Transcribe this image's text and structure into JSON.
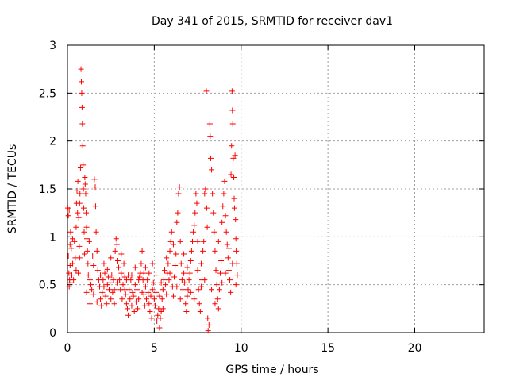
{
  "chart_data": {
    "type": "scatter",
    "title": "Day 341 of 2015, SRMTID for receiver dav1",
    "xlabel": "GPS time / hours",
    "ylabel": "SRMTID / TECUs",
    "xlim": [
      0,
      24
    ],
    "ylim": [
      0,
      3
    ],
    "xticks": [
      "0",
      "5",
      "10",
      "15",
      "20"
    ],
    "yticks": [
      "0",
      "0.5",
      "1",
      "1.5",
      "2",
      "2.5",
      "3"
    ],
    "grid": true,
    "marker": "+",
    "color": "#ff0000",
    "series": [
      {
        "points": [
          [
            0.02,
            1.3
          ],
          [
            0.05,
            1.22
          ],
          [
            0.05,
            0.8
          ],
          [
            0.08,
            0.62
          ],
          [
            0.1,
            1.28
          ],
          [
            0.12,
            0.55
          ],
          [
            0.15,
            0.92
          ],
          [
            0.15,
            0.7
          ],
          [
            0.18,
            1.05
          ],
          [
            0.2,
            0.52
          ],
          [
            0.22,
            0.88
          ],
          [
            0.25,
            0.6
          ],
          [
            0.3,
            0.72
          ],
          [
            0.35,
            0.55
          ],
          [
            0.4,
            0.95
          ],
          [
            0.45,
            0.78
          ],
          [
            0.5,
            1.1
          ],
          [
            0.52,
            1.35
          ],
          [
            0.55,
            1.48
          ],
          [
            0.58,
            1.25
          ],
          [
            0.6,
            1.58
          ],
          [
            0.62,
            0.62
          ],
          [
            0.65,
            1.2
          ],
          [
            0.68,
            0.9
          ],
          [
            0.7,
            1.35
          ],
          [
            0.72,
            1.45
          ],
          [
            0.75,
            1.72
          ],
          [
            0.78,
            2.75
          ],
          [
            0.8,
            2.62
          ],
          [
            0.82,
            2.5
          ],
          [
            0.84,
            2.35
          ],
          [
            0.86,
            2.18
          ],
          [
            0.88,
            1.95
          ],
          [
            0.9,
            1.75
          ],
          [
            0.92,
            1.5
          ],
          [
            0.94,
            1.3
          ],
          [
            0.96,
            1.05
          ],
          [
            0.98,
            0.82
          ],
          [
            1.0,
            1.62
          ],
          [
            1.02,
            1.55
          ],
          [
            1.05,
            1.45
          ],
          [
            1.08,
            1.25
          ],
          [
            1.1,
            1.1
          ],
          [
            1.12,
            0.98
          ],
          [
            1.15,
            0.85
          ],
          [
            1.18,
            0.72
          ],
          [
            1.2,
            0.6
          ],
          [
            1.25,
            0.95
          ],
          [
            1.3,
            0.55
          ],
          [
            1.35,
            0.5
          ],
          [
            1.4,
            0.45
          ],
          [
            1.45,
            0.8
          ],
          [
            1.5,
            0.7
          ],
          [
            1.55,
            1.6
          ],
          [
            1.6,
            1.52
          ],
          [
            1.62,
            1.32
          ],
          [
            1.65,
            1.05
          ],
          [
            1.7,
            0.85
          ],
          [
            1.75,
            0.65
          ],
          [
            1.8,
            0.55
          ],
          [
            1.85,
            0.48
          ],
          [
            1.9,
            0.35
          ],
          [
            1.95,
            0.28
          ],
          [
            2.0,
            0.42
          ],
          [
            2.05,
            0.55
          ],
          [
            2.1,
            0.48
          ],
          [
            2.15,
            0.62
          ],
          [
            2.2,
            0.38
          ],
          [
            2.25,
            0.3
          ],
          [
            2.3,
            0.5
          ],
          [
            2.35,
            0.58
          ],
          [
            2.4,
            0.45
          ],
          [
            2.45,
            0.52
          ],
          [
            2.5,
            0.35
          ],
          [
            2.55,
            0.6
          ],
          [
            2.6,
            0.42
          ],
          [
            2.65,
            0.55
          ],
          [
            2.7,
            0.3
          ],
          [
            2.75,
            0.85
          ],
          [
            2.8,
            0.98
          ],
          [
            2.85,
            0.92
          ],
          [
            2.9,
            0.75
          ],
          [
            2.95,
            0.68
          ],
          [
            3.0,
            0.55
          ],
          [
            3.05,
            0.45
          ],
          [
            3.1,
            0.62
          ],
          [
            3.15,
            0.35
          ],
          [
            3.2,
            0.5
          ],
          [
            3.25,
            0.72
          ],
          [
            3.3,
            0.58
          ],
          [
            3.35,
            0.4
          ],
          [
            3.4,
            0.3
          ],
          [
            3.45,
            0.25
          ],
          [
            3.5,
            0.18
          ],
          [
            3.55,
            0.45
          ],
          [
            3.6,
            0.35
          ],
          [
            3.65,
            0.55
          ],
          [
            3.7,
            0.28
          ],
          [
            3.75,
            0.42
          ],
          [
            3.8,
            0.38
          ],
          [
            3.85,
            0.22
          ],
          [
            3.9,
            0.5
          ],
          [
            3.95,
            0.32
          ],
          [
            4.0,
            0.45
          ],
          [
            4.05,
            0.25
          ],
          [
            4.1,
            0.35
          ],
          [
            4.15,
            0.58
          ],
          [
            4.2,
            0.62
          ],
          [
            4.25,
            0.72
          ],
          [
            4.3,
            0.85
          ],
          [
            4.35,
            0.55
          ],
          [
            4.4,
            0.4
          ],
          [
            4.45,
            0.28
          ],
          [
            4.5,
            0.48
          ],
          [
            4.55,
            0.35
          ],
          [
            4.6,
            0.55
          ],
          [
            4.65,
            0.42
          ],
          [
            4.7,
            0.3
          ],
          [
            4.75,
            0.22
          ],
          [
            4.8,
            0.38
          ],
          [
            4.85,
            0.15
          ],
          [
            4.9,
            0.45
          ],
          [
            4.95,
            0.52
          ],
          [
            5.0,
            0.35
          ],
          [
            5.05,
            0.28
          ],
          [
            5.1,
            0.42
          ],
          [
            5.15,
            0.12
          ],
          [
            5.2,
            0.18
          ],
          [
            5.25,
            0.25
          ],
          [
            5.3,
            0.05
          ],
          [
            5.35,
            0.15
          ],
          [
            5.4,
            0.22
          ],
          [
            5.45,
            0.35
          ],
          [
            5.5,
            0.45
          ],
          [
            5.55,
            0.55
          ],
          [
            5.6,
            0.65
          ],
          [
            5.65,
            0.5
          ],
          [
            5.7,
            0.4
          ],
          [
            5.75,
            0.62
          ],
          [
            5.8,
            0.72
          ],
          [
            5.85,
            0.55
          ],
          [
            5.9,
            0.85
          ],
          [
            5.95,
            0.95
          ],
          [
            6.0,
            1.05
          ],
          [
            6.05,
            0.48
          ],
          [
            6.1,
            0.38
          ],
          [
            6.15,
            0.58
          ],
          [
            6.2,
            0.7
          ],
          [
            6.25,
            0.82
          ],
          [
            6.3,
            1.15
          ],
          [
            6.35,
            1.25
          ],
          [
            6.4,
            1.45
          ],
          [
            6.45,
            1.52
          ],
          [
            6.5,
            0.95
          ],
          [
            6.55,
            0.72
          ],
          [
            6.6,
            0.55
          ],
          [
            6.65,
            0.45
          ],
          [
            6.7,
            0.62
          ],
          [
            6.75,
            0.52
          ],
          [
            6.8,
            0.3
          ],
          [
            6.85,
            0.22
          ],
          [
            6.9,
            0.38
          ],
          [
            6.95,
            0.45
          ],
          [
            7.0,
            0.55
          ],
          [
            7.05,
            0.62
          ],
          [
            7.1,
            0.75
          ],
          [
            7.15,
            0.85
          ],
          [
            7.2,
            0.95
          ],
          [
            7.25,
            1.05
          ],
          [
            7.3,
            1.12
          ],
          [
            7.35,
            1.25
          ],
          [
            7.4,
            1.45
          ],
          [
            7.45,
            1.35
          ],
          [
            7.5,
            0.65
          ],
          [
            7.55,
            0.45
          ],
          [
            7.6,
            0.3
          ],
          [
            7.65,
            0.22
          ],
          [
            7.7,
            0.48
          ],
          [
            7.75,
            0.55
          ],
          [
            7.8,
            0.85
          ],
          [
            7.85,
            0.95
          ],
          [
            7.9,
            1.45
          ],
          [
            7.95,
            1.5
          ],
          [
            8.0,
            2.52
          ],
          [
            8.02,
            1.3
          ],
          [
            8.05,
            1.1
          ],
          [
            8.08,
            0.15
          ],
          [
            8.1,
            0.02
          ],
          [
            8.15,
            0.08
          ],
          [
            8.2,
            2.18
          ],
          [
            8.22,
            2.05
          ],
          [
            8.25,
            1.82
          ],
          [
            8.3,
            1.7
          ],
          [
            8.35,
            1.45
          ],
          [
            8.4,
            1.25
          ],
          [
            8.45,
            1.05
          ],
          [
            8.5,
            0.85
          ],
          [
            8.55,
            0.65
          ],
          [
            8.6,
            0.5
          ],
          [
            8.65,
            0.35
          ],
          [
            8.7,
            0.25
          ],
          [
            8.75,
            0.45
          ],
          [
            8.8,
            0.62
          ],
          [
            8.85,
            0.75
          ],
          [
            8.9,
            1.15
          ],
          [
            8.95,
            1.32
          ],
          [
            9.0,
            1.45
          ],
          [
            9.05,
            1.58
          ],
          [
            9.1,
            1.22
          ],
          [
            9.15,
            1.05
          ],
          [
            9.2,
            0.92
          ],
          [
            9.25,
            0.78
          ],
          [
            9.3,
            0.65
          ],
          [
            9.35,
            0.55
          ],
          [
            9.4,
            0.42
          ],
          [
            9.42,
            1.65
          ],
          [
            9.45,
            1.95
          ],
          [
            9.48,
            2.52
          ],
          [
            9.5,
            2.32
          ],
          [
            9.52,
            2.18
          ],
          [
            9.55,
            1.82
          ],
          [
            9.58,
            1.62
          ],
          [
            9.6,
            1.4
          ],
          [
            9.62,
            1.3
          ],
          [
            9.65,
            1.85
          ],
          [
            9.68,
            1.18
          ],
          [
            9.7,
            0.98
          ],
          [
            9.72,
            0.85
          ],
          [
            9.75,
            0.72
          ],
          [
            9.78,
            0.6
          ],
          [
            0.1,
            0.48
          ],
          [
            0.3,
            0.98
          ],
          [
            0.5,
            0.65
          ],
          [
            0.7,
            0.78
          ],
          [
            1.1,
            0.42
          ],
          [
            1.3,
            0.3
          ],
          [
            1.5,
            0.4
          ],
          [
            1.7,
            0.32
          ],
          [
            1.9,
            0.6
          ],
          [
            2.1,
            0.72
          ],
          [
            2.3,
            0.66
          ],
          [
            2.5,
            0.78
          ],
          [
            2.7,
            0.45
          ],
          [
            2.9,
            0.52
          ],
          [
            3.1,
            0.82
          ],
          [
            3.3,
            0.45
          ],
          [
            3.5,
            0.6
          ],
          [
            3.7,
            0.6
          ],
          [
            3.9,
            0.68
          ],
          [
            4.1,
            0.55
          ],
          [
            4.3,
            0.42
          ],
          [
            4.5,
            0.68
          ],
          [
            4.7,
            0.62
          ],
          [
            4.9,
            0.72
          ],
          [
            5.1,
            0.6
          ],
          [
            5.3,
            0.38
          ],
          [
            5.5,
            0.25
          ],
          [
            5.7,
            0.78
          ],
          [
            5.9,
            0.62
          ],
          [
            6.1,
            0.92
          ],
          [
            6.3,
            0.48
          ],
          [
            6.5,
            0.35
          ],
          [
            6.7,
            0.82
          ],
          [
            6.9,
            0.68
          ],
          [
            7.1,
            0.42
          ],
          [
            7.3,
            0.35
          ],
          [
            7.5,
            0.95
          ],
          [
            7.7,
            0.72
          ],
          [
            7.9,
            0.55
          ],
          [
            8.3,
            0.45
          ],
          [
            8.5,
            0.3
          ],
          [
            8.7,
            0.95
          ],
          [
            8.9,
            0.52
          ],
          [
            9.1,
            0.62
          ],
          [
            9.3,
            0.88
          ],
          [
            9.5,
            0.72
          ],
          [
            9.7,
            0.5
          ],
          [
            3.4,
            0.55
          ],
          [
            4.4,
            0.62
          ],
          [
            5.4,
            0.52
          ]
        ]
      }
    ]
  }
}
